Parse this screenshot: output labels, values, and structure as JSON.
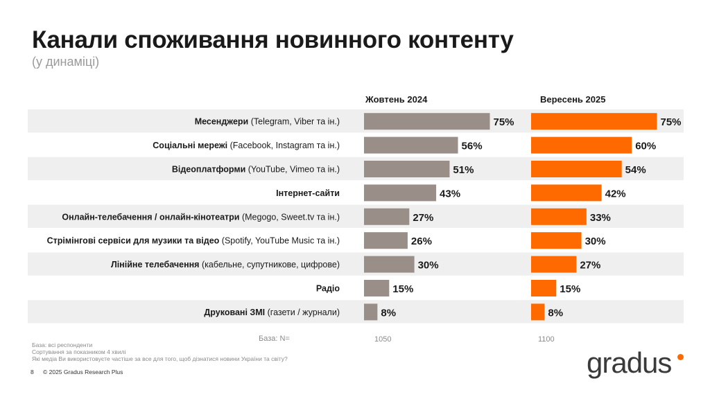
{
  "title": "Канали споживання новинного контенту",
  "subtitle": "(у динаміці)",
  "colors": {
    "grey": "#9a8f88",
    "orange": "#ff6a00",
    "stripe": "#efefef"
  },
  "chart_data": {
    "type": "bar",
    "orientation": "horizontal",
    "value_suffix": "%",
    "xlim": [
      0,
      100
    ],
    "categories": [
      {
        "bold": "Месенджери",
        "normal": " (Telegram, Viber та ін.)"
      },
      {
        "bold": "Соціальні мережі",
        "normal": " (Facebook, Instagram та ін.)"
      },
      {
        "bold": "Відеоплатформи",
        "normal": " (YouTube, Vimeo та ін.)"
      },
      {
        "bold": "Інтернет-сайти",
        "normal": ""
      },
      {
        "bold": "Онлайн-телебачення / онлайн-кінотеатри",
        "normal": " (Megogo, Sweet.tv та ін.)"
      },
      {
        "bold": "Стрімінгові сервіси для музики та відео",
        "normal": " (Spotify, YouTube Music та ін.)"
      },
      {
        "bold": "Лінійне телебачення",
        "normal": " (кабельне, супутникове, цифрове)"
      },
      {
        "bold": "Радіо",
        "normal": ""
      },
      {
        "bold": "Друковані ЗМІ",
        "normal": " (газети / журнали)"
      }
    ],
    "series": [
      {
        "name": "Жовтень 2024",
        "base": "1050",
        "values": [
          75,
          56,
          51,
          43,
          27,
          26,
          30,
          15,
          8
        ]
      },
      {
        "name": "Вересень 2025",
        "base": "1100",
        "values": [
          75,
          60,
          54,
          42,
          33,
          30,
          27,
          15,
          8
        ]
      }
    ]
  },
  "base_label": "База: N=",
  "footnotes": [
    "База: всі респонденти",
    "Сортування за показником 4 хвилі",
    "Які медіа Ви використовуєте частіше за все для того, щоб дізнатися новини України та світу?"
  ],
  "page_number": "8",
  "copyright": "© 2025 Gradus Research Plus",
  "logo_text": "gradus"
}
